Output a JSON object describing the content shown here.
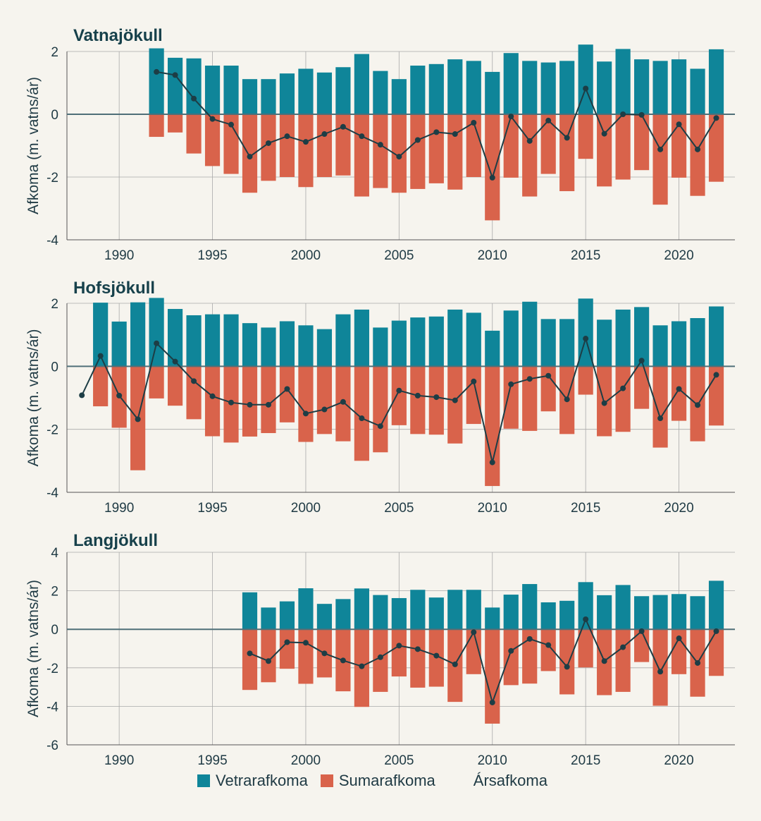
{
  "colors": {
    "winter": "#0f8599",
    "summer": "#d9634b",
    "annual": "#1d3d45",
    "grid": "#a9a9a9",
    "zero": "#4f6f78"
  },
  "legend": {
    "winter": "Vetrarafkoma",
    "summer": "Sumarafkoma",
    "annual": "Ársafkoma"
  },
  "chart_data": [
    {
      "type": "bar",
      "title": "Vatnajökull",
      "ylabel": "Afkoma (m. vatns/ár)",
      "xlim": [
        1987.2,
        2023.0
      ],
      "ylim": [
        -4,
        2
      ],
      "yticks": [
        -4,
        -2,
        0,
        2
      ],
      "xticks": [
        1990,
        1995,
        2000,
        2005,
        2010,
        2015,
        2020
      ],
      "grid": true,
      "years": [
        1992,
        1993,
        1994,
        1995,
        1996,
        1997,
        1998,
        1999,
        2000,
        2001,
        2002,
        2003,
        2004,
        2005,
        2006,
        2007,
        2008,
        2009,
        2010,
        2011,
        2012,
        2013,
        2014,
        2015,
        2016,
        2017,
        2018,
        2019,
        2020,
        2021,
        2022
      ],
      "series": [
        {
          "name": "Vetrarafkoma",
          "kind": "bar",
          "values": [
            2.1,
            1.8,
            1.78,
            1.55,
            1.55,
            1.12,
            1.12,
            1.3,
            1.45,
            1.33,
            1.5,
            1.92,
            1.38,
            1.12,
            1.55,
            1.6,
            1.75,
            1.7,
            1.35,
            1.95,
            1.7,
            1.65,
            1.7,
            2.22,
            1.68,
            2.08,
            1.75,
            1.7,
            1.75,
            1.45,
            2.07
          ]
        },
        {
          "name": "Sumarafkoma",
          "kind": "bar",
          "values": [
            -0.72,
            -0.58,
            -1.25,
            -1.65,
            -1.9,
            -2.5,
            -2.12,
            -2.0,
            -2.32,
            -2.0,
            -1.95,
            -2.62,
            -2.35,
            -2.5,
            -2.38,
            -2.2,
            -2.4,
            -2.0,
            -3.38,
            -2.02,
            -2.62,
            -1.9,
            -2.45,
            -1.42,
            -2.3,
            -2.08,
            -1.78,
            -2.88,
            -2.02,
            -2.6,
            -2.15
          ]
        },
        {
          "name": "Ársafkoma",
          "kind": "line",
          "values": [
            1.35,
            1.25,
            0.5,
            -0.15,
            -0.33,
            -1.35,
            -0.92,
            -0.7,
            -0.88,
            -0.63,
            -0.4,
            -0.7,
            -0.97,
            -1.35,
            -0.82,
            -0.57,
            -0.63,
            -0.27,
            -2.02,
            -0.07,
            -0.85,
            -0.2,
            -0.75,
            0.82,
            -0.62,
            0.0,
            -0.02,
            -1.12,
            -0.32,
            -1.12,
            -0.12
          ]
        }
      ]
    },
    {
      "type": "bar",
      "title": "Hofsjökull",
      "ylabel": "Afkoma (m. vatns/ár)",
      "xlim": [
        1987.2,
        2023.0
      ],
      "ylim": [
        -4,
        2
      ],
      "yticks": [
        -4,
        -2,
        0,
        2
      ],
      "xticks": [
        1990,
        1995,
        2000,
        2005,
        2010,
        2015,
        2020
      ],
      "grid": true,
      "years": [
        1989,
        1990,
        1991,
        1992,
        1993,
        1994,
        1995,
        1996,
        1997,
        1998,
        1999,
        2000,
        2001,
        2002,
        2003,
        2004,
        2005,
        2006,
        2007,
        2008,
        2009,
        2010,
        2011,
        2012,
        2013,
        2014,
        2015,
        2016,
        2017,
        2018,
        2019,
        2020,
        2021,
        2022
      ],
      "series": [
        {
          "name": "Vetrarafkoma",
          "kind": "bar",
          "values": [
            2.02,
            1.42,
            2.03,
            2.17,
            1.82,
            1.62,
            1.65,
            1.65,
            1.37,
            1.23,
            1.43,
            1.3,
            1.18,
            1.65,
            1.8,
            1.23,
            1.45,
            1.55,
            1.58,
            1.8,
            1.7,
            1.13,
            1.77,
            2.05,
            1.5,
            1.5,
            2.15,
            1.48,
            1.8,
            1.88,
            1.3,
            1.43,
            1.53,
            1.9
          ]
        },
        {
          "name": "Sumarafkoma",
          "kind": "bar",
          "values": [
            -1.27,
            -1.95,
            -3.3,
            -1.02,
            -1.25,
            -1.68,
            -2.22,
            -2.42,
            -2.23,
            -2.12,
            -1.78,
            -2.4,
            -2.15,
            -2.38,
            -3.0,
            -2.73,
            -1.87,
            -2.15,
            -2.17,
            -2.45,
            -1.83,
            -3.8,
            -1.98,
            -2.05,
            -1.43,
            -2.15,
            -0.9,
            -2.22,
            -2.08,
            -1.35,
            -2.58,
            -1.73,
            -2.38,
            -1.88
          ]
        },
        {
          "name": "Ársafkoma",
          "kind": "line",
          "years": [
            1988,
            1989,
            1990,
            1991,
            1992,
            1993,
            1994,
            1995,
            1996,
            1997,
            1998,
            1999,
            2000,
            2001,
            2002,
            2003,
            2004,
            2005,
            2006,
            2007,
            2008,
            2009,
            2010,
            2011,
            2012,
            2013,
            2014,
            2015,
            2016,
            2017,
            2018,
            2019,
            2020,
            2021,
            2022
          ],
          "values": [
            -0.92,
            0.33,
            -0.93,
            -1.68,
            0.73,
            0.15,
            -0.47,
            -0.95,
            -1.15,
            -1.22,
            -1.22,
            -0.72,
            -1.5,
            -1.37,
            -1.13,
            -1.65,
            -1.9,
            -0.77,
            -0.93,
            -0.98,
            -1.08,
            -0.48,
            -3.05,
            -0.57,
            -0.4,
            -0.3,
            -1.05,
            0.88,
            -1.17,
            -0.7,
            0.18,
            -1.65,
            -0.72,
            -1.23,
            -0.27
          ]
        }
      ]
    },
    {
      "type": "bar",
      "title": "Langjökull",
      "ylabel": "Afkoma (m. vatns/ár)",
      "xlim": [
        1987.2,
        2023.0
      ],
      "ylim": [
        -6,
        4
      ],
      "yticks": [
        -6,
        -4,
        -2,
        0,
        2,
        4
      ],
      "xticks": [
        1990,
        1995,
        2000,
        2005,
        2010,
        2015,
        2020
      ],
      "grid": true,
      "years": [
        1997,
        1998,
        1999,
        2000,
        2001,
        2002,
        2003,
        2004,
        2005,
        2006,
        2007,
        2008,
        2009,
        2010,
        2011,
        2012,
        2013,
        2014,
        2015,
        2016,
        2017,
        2018,
        2019,
        2020,
        2021,
        2022
      ],
      "series": [
        {
          "name": "Vetrarafkoma",
          "kind": "bar",
          "values": [
            1.92,
            1.13,
            1.45,
            2.13,
            1.32,
            1.57,
            2.12,
            1.78,
            1.62,
            2.05,
            1.65,
            2.05,
            2.05,
            1.13,
            1.8,
            2.35,
            1.4,
            1.48,
            2.45,
            1.77,
            2.3,
            1.72,
            1.78,
            1.83,
            1.72,
            2.52
          ]
        },
        {
          "name": "Sumarafkoma",
          "kind": "bar",
          "values": [
            -3.15,
            -2.75,
            -2.05,
            -2.83,
            -2.5,
            -3.22,
            -4.03,
            -3.25,
            -2.45,
            -3.03,
            -2.98,
            -3.77,
            -2.33,
            -4.9,
            -2.9,
            -2.82,
            -2.17,
            -3.38,
            -1.98,
            -3.42,
            -3.25,
            -1.7,
            -3.97,
            -2.33,
            -3.5,
            -2.42
          ]
        },
        {
          "name": "Ársafkoma",
          "kind": "line",
          "values": [
            -1.25,
            -1.65,
            -0.67,
            -0.7,
            -1.25,
            -1.62,
            -1.92,
            -1.45,
            -0.85,
            -1.03,
            -1.37,
            -1.82,
            -0.15,
            -3.8,
            -1.12,
            -0.5,
            -0.82,
            -1.95,
            0.52,
            -1.65,
            -0.93,
            -0.1,
            -2.2,
            -0.47,
            -1.75,
            -0.1
          ]
        }
      ]
    }
  ]
}
